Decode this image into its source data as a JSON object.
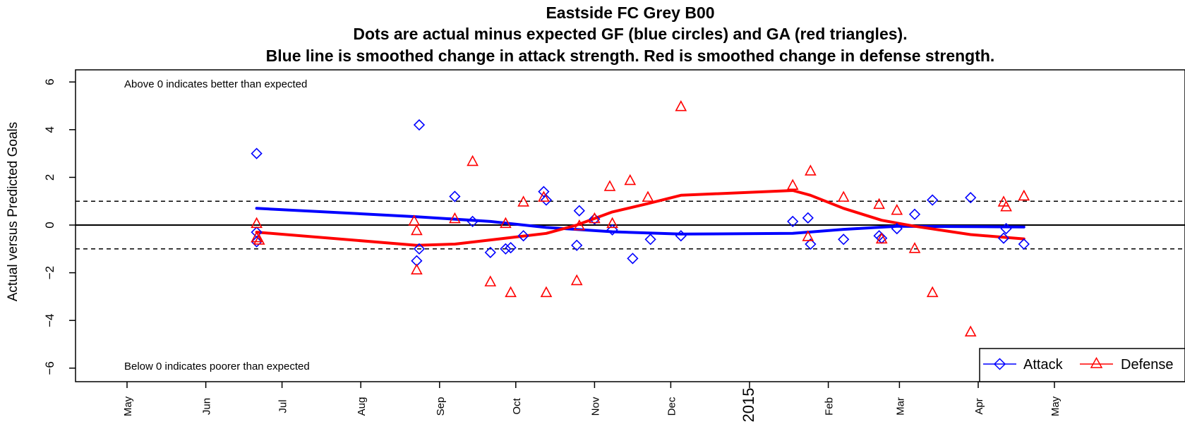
{
  "chart_data": {
    "type": "scatter",
    "title": "Eastside FC Grey B00",
    "subtitle_lines": [
      "Dots are actual minus expected GF (blue circles) and GA (red triangles).",
      "Blue line is smoothed change in attack strength. Red is smoothed change in defense strength."
    ],
    "ylabel": "Actual versus Predicted Goals",
    "xlabel": "",
    "xlim": [
      "2014-04-11",
      "2015-06-26"
    ],
    "ylim": [
      -6.5,
      6.5
    ],
    "y_ticks": [
      -6,
      -4,
      -2,
      0,
      2,
      4,
      6
    ],
    "y_tick_labels": [
      "−6",
      "−4",
      "−2",
      "0",
      "2",
      "4",
      "6"
    ],
    "x_ticks": [
      {
        "date": "2014-05-01",
        "label": "May"
      },
      {
        "date": "2014-06-01",
        "label": "Jun"
      },
      {
        "date": "2014-07-01",
        "label": "Jul"
      },
      {
        "date": "2014-08-01",
        "label": "Aug"
      },
      {
        "date": "2014-09-01",
        "label": "Sep"
      },
      {
        "date": "2014-10-01",
        "label": "Oct"
      },
      {
        "date": "2014-11-01",
        "label": "Nov"
      },
      {
        "date": "2014-12-01",
        "label": "Dec"
      },
      {
        "date": "2015-01-01",
        "label": "2015"
      },
      {
        "date": "2015-02-01",
        "label": "Feb"
      },
      {
        "date": "2015-03-01",
        "label": "Mar"
      },
      {
        "date": "2015-04-01",
        "label": "Apr"
      },
      {
        "date": "2015-05-01",
        "label": "May"
      }
    ],
    "reference_lines": {
      "solid": [
        0
      ],
      "dashed": [
        1,
        -1
      ]
    },
    "annotations": {
      "top": "Above 0 indicates better than expected",
      "bottom": "Below 0 indicates poorer than expected"
    },
    "legend": {
      "position": "bottom-right",
      "entries": [
        {
          "name": "Attack",
          "color": "#0000ff",
          "marker": "diamond"
        },
        {
          "name": "Defense",
          "color": "#ff0000",
          "marker": "triangle"
        }
      ]
    },
    "series": [
      {
        "name": "Attack",
        "color": "#0000ff",
        "marker": "diamond",
        "points": [
          {
            "x": "2014-06-21",
            "y": 3.0
          },
          {
            "x": "2014-06-21",
            "y": -0.3
          },
          {
            "x": "2014-06-21",
            "y": -0.7
          },
          {
            "x": "2014-08-24",
            "y": 4.2
          },
          {
            "x": "2014-08-24",
            "y": -1.0
          },
          {
            "x": "2014-08-23",
            "y": -1.5
          },
          {
            "x": "2014-09-07",
            "y": 1.2
          },
          {
            "x": "2014-09-14",
            "y": 0.15
          },
          {
            "x": "2014-09-21",
            "y": -1.15
          },
          {
            "x": "2014-09-27",
            "y": -1.0
          },
          {
            "x": "2014-09-29",
            "y": -0.95
          },
          {
            "x": "2014-10-04",
            "y": -0.45
          },
          {
            "x": "2014-10-12",
            "y": 1.4
          },
          {
            "x": "2014-10-13",
            "y": 1.05
          },
          {
            "x": "2014-10-26",
            "y": 0.6
          },
          {
            "x": "2014-10-25",
            "y": -0.85
          },
          {
            "x": "2014-11-01",
            "y": 0.25
          },
          {
            "x": "2014-11-08",
            "y": -0.2
          },
          {
            "x": "2014-11-16",
            "y": -1.4
          },
          {
            "x": "2014-11-23",
            "y": -0.6
          },
          {
            "x": "2014-12-05",
            "y": -0.45
          },
          {
            "x": "2015-01-18",
            "y": 0.15
          },
          {
            "x": "2015-01-24",
            "y": 0.3
          },
          {
            "x": "2015-01-25",
            "y": -0.8
          },
          {
            "x": "2015-02-07",
            "y": -0.6
          },
          {
            "x": "2015-02-21",
            "y": -0.45
          },
          {
            "x": "2015-02-22",
            "y": -0.55
          },
          {
            "x": "2015-02-28",
            "y": -0.15
          },
          {
            "x": "2015-03-07",
            "y": 0.45
          },
          {
            "x": "2015-03-14",
            "y": 1.05
          },
          {
            "x": "2015-03-29",
            "y": 1.15
          },
          {
            "x": "2015-04-11",
            "y": -0.55
          },
          {
            "x": "2015-04-12",
            "y": -0.15
          },
          {
            "x": "2015-04-19",
            "y": -0.8
          }
        ]
      },
      {
        "name": "Defense",
        "color": "#ff0000",
        "marker": "triangle",
        "points": [
          {
            "x": "2014-06-21",
            "y": 0.05
          },
          {
            "x": "2014-06-21",
            "y": -0.55
          },
          {
            "x": "2014-06-22",
            "y": -0.65
          },
          {
            "x": "2014-08-22",
            "y": 0.15
          },
          {
            "x": "2014-08-23",
            "y": -0.25
          },
          {
            "x": "2014-08-23",
            "y": -1.9
          },
          {
            "x": "2014-09-07",
            "y": 0.25
          },
          {
            "x": "2014-09-14",
            "y": 2.65
          },
          {
            "x": "2014-09-21",
            "y": -2.4
          },
          {
            "x": "2014-09-27",
            "y": 0.05
          },
          {
            "x": "2014-09-29",
            "y": -2.85
          },
          {
            "x": "2014-10-04",
            "y": 0.95
          },
          {
            "x": "2014-10-12",
            "y": 1.15
          },
          {
            "x": "2014-10-13",
            "y": -2.85
          },
          {
            "x": "2014-10-25",
            "y": -2.35
          },
          {
            "x": "2014-10-26",
            "y": -0.05
          },
          {
            "x": "2014-11-01",
            "y": 0.25
          },
          {
            "x": "2014-11-07",
            "y": 1.6
          },
          {
            "x": "2014-11-08",
            "y": 0.05
          },
          {
            "x": "2014-11-15",
            "y": 1.85
          },
          {
            "x": "2014-11-22",
            "y": 1.15
          },
          {
            "x": "2014-12-05",
            "y": 4.95
          },
          {
            "x": "2015-01-18",
            "y": 1.65
          },
          {
            "x": "2015-01-24",
            "y": -0.5
          },
          {
            "x": "2015-01-25",
            "y": 2.25
          },
          {
            "x": "2015-02-07",
            "y": 1.15
          },
          {
            "x": "2015-02-21",
            "y": 0.85
          },
          {
            "x": "2015-02-22",
            "y": -0.6
          },
          {
            "x": "2015-02-28",
            "y": 0.6
          },
          {
            "x": "2015-03-07",
            "y": -1.0
          },
          {
            "x": "2015-03-14",
            "y": -2.85
          },
          {
            "x": "2015-03-29",
            "y": -4.5
          },
          {
            "x": "2015-04-11",
            "y": 0.95
          },
          {
            "x": "2015-04-12",
            "y": 0.75
          },
          {
            "x": "2015-04-19",
            "y": 1.2
          }
        ]
      }
    ],
    "smoothed_lines": [
      {
        "name": "Attack",
        "color": "#0000ff",
        "points": [
          {
            "x": "2014-06-21",
            "y": 0.7
          },
          {
            "x": "2014-08-23",
            "y": 0.35
          },
          {
            "x": "2014-09-21",
            "y": 0.15
          },
          {
            "x": "2014-10-13",
            "y": -0.1
          },
          {
            "x": "2014-11-08",
            "y": -0.28
          },
          {
            "x": "2014-12-05",
            "y": -0.38
          },
          {
            "x": "2015-01-18",
            "y": -0.35
          },
          {
            "x": "2015-02-07",
            "y": -0.18
          },
          {
            "x": "2015-02-28",
            "y": -0.05
          },
          {
            "x": "2015-04-19",
            "y": -0.08
          }
        ]
      },
      {
        "name": "Defense",
        "color": "#ff0000",
        "points": [
          {
            "x": "2014-06-21",
            "y": -0.3
          },
          {
            "x": "2014-08-23",
            "y": -0.85
          },
          {
            "x": "2014-09-07",
            "y": -0.8
          },
          {
            "x": "2014-09-27",
            "y": -0.55
          },
          {
            "x": "2014-10-13",
            "y": -0.35
          },
          {
            "x": "2014-10-25",
            "y": 0.0
          },
          {
            "x": "2014-11-08",
            "y": 0.55
          },
          {
            "x": "2014-11-22",
            "y": 0.9
          },
          {
            "x": "2014-12-05",
            "y": 1.25
          },
          {
            "x": "2015-01-18",
            "y": 1.45
          },
          {
            "x": "2015-01-25",
            "y": 1.25
          },
          {
            "x": "2015-02-07",
            "y": 0.7
          },
          {
            "x": "2015-02-22",
            "y": 0.2
          },
          {
            "x": "2015-03-07",
            "y": -0.05
          },
          {
            "x": "2015-03-29",
            "y": -0.4
          },
          {
            "x": "2015-04-19",
            "y": -0.58
          }
        ]
      }
    ]
  }
}
